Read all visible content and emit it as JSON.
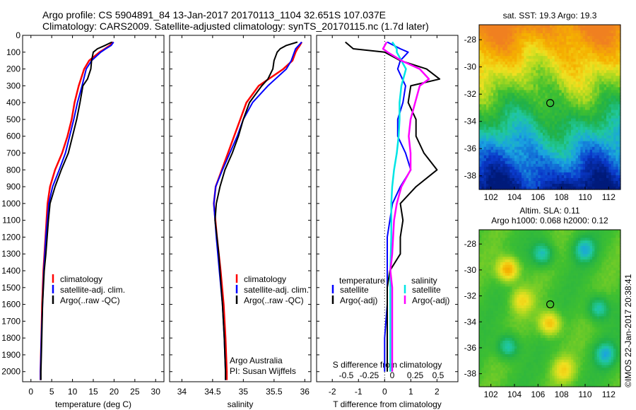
{
  "header": {
    "line1": "Argo profile: CS 5904891_84 13-Jan-2017 20170113_1104 32.651S 107.037E",
    "line2": "Climatology: CARS2009. Satellite-adjusted climatology: synTS_20170115.nc (1.7d later)"
  },
  "credit": "©IMOS 22-Jan-2017 20:38:41",
  "colors": {
    "climatology": "#ff0000",
    "satellite": "#0000ff",
    "argo": "#000000",
    "salinity_sat": "#00e5e5",
    "salinity_argo": "#ff00ff",
    "zero_line": "#000000"
  },
  "depth_axis": {
    "ticks": [
      0,
      100,
      200,
      300,
      400,
      500,
      600,
      700,
      800,
      900,
      1000,
      1100,
      1200,
      1300,
      1400,
      1500,
      1600,
      1700,
      1800,
      1900,
      2000
    ],
    "range": [
      0,
      2060
    ]
  },
  "chart_data": [
    {
      "type": "line",
      "panel": "temperature",
      "xlabel": "temperature (deg C)",
      "x_ticks": [
        "0",
        "5",
        "10",
        "15",
        "20",
        "25",
        "30"
      ],
      "x_tick_values": [
        0,
        5,
        10,
        15,
        20,
        25,
        30
      ],
      "xlim": [
        -2,
        32
      ],
      "legend": [
        "climatology",
        "satellite-adj. clim.",
        "Argo(..raw -QC)"
      ],
      "series": [
        {
          "name": "climatology",
          "color": "#ff0000",
          "depth": [
            40,
            60,
            80,
            100,
            150,
            200,
            300,
            400,
            500,
            600,
            700,
            800,
            900,
            1000,
            1200,
            1400,
            1600,
            1800,
            2000,
            2050
          ],
          "values": [
            19.8,
            19.0,
            17.8,
            16.5,
            14.0,
            12.8,
            11.5,
            10.5,
            9.8,
            8.8,
            7.5,
            5.8,
            4.6,
            4.0,
            3.5,
            3.0,
            2.7,
            2.5,
            2.3,
            2.3
          ]
        },
        {
          "name": "satellite-adj. clim.",
          "color": "#0000ff",
          "depth": [
            40,
            60,
            80,
            100,
            150,
            200,
            300,
            400,
            500,
            600,
            700,
            800,
            900,
            1000,
            1200,
            1400,
            1600,
            1800,
            2000,
            2050
          ],
          "values": [
            19.9,
            19.3,
            18.0,
            16.8,
            14.6,
            13.3,
            12.3,
            11.2,
            10.3,
            9.3,
            8.3,
            6.8,
            5.2,
            4.3,
            3.6,
            3.1,
            2.8,
            2.5,
            2.3,
            2.3
          ]
        },
        {
          "name": "Argo(..raw -QC)",
          "color": "#000000",
          "depth": [
            40,
            60,
            80,
            100,
            150,
            200,
            260,
            300,
            400,
            500,
            600,
            700,
            800,
            900,
            1000,
            1100,
            1200,
            1300,
            1400,
            1500,
            1600,
            1800,
            2000,
            2050
          ],
          "values": [
            19.5,
            17.8,
            16.0,
            15.0,
            14.6,
            14.4,
            13.6,
            12.5,
            11.8,
            11.0,
            10.0,
            9.0,
            7.3,
            5.8,
            4.6,
            4.2,
            3.9,
            3.6,
            3.2,
            3.0,
            2.8,
            2.6,
            2.4,
            2.4
          ]
        }
      ]
    },
    {
      "type": "line",
      "panel": "salinity",
      "xlabel": "salinity",
      "x_ticks": [
        "34",
        "34.5",
        "35",
        "35.5",
        "36"
      ],
      "x_tick_values": [
        34,
        34.5,
        35,
        35.5,
        36
      ],
      "xlim": [
        33.8,
        36.1
      ],
      "legend": [
        "climatology",
        "satellite-adj. clim.",
        "Argo(..raw -QC)"
      ],
      "annotation": [
        "Argo Australia",
        "PI: Susan Wijffels"
      ],
      "series": [
        {
          "name": "climatology",
          "color": "#ff0000",
          "depth": [
            40,
            60,
            80,
            100,
            150,
            200,
            300,
            400,
            500,
            600,
            700,
            800,
            900,
            1000,
            1200,
            1400,
            1600,
            1800,
            2000,
            2050
          ],
          "values": [
            35.95,
            35.92,
            35.88,
            35.85,
            35.8,
            35.65,
            35.25,
            35.05,
            34.95,
            34.85,
            34.75,
            34.65,
            34.55,
            34.52,
            34.57,
            34.63,
            34.68,
            34.71,
            34.73,
            34.73
          ]
        },
        {
          "name": "satellite-adj. clim.",
          "color": "#0000ff",
          "depth": [
            40,
            60,
            80,
            100,
            150,
            200,
            300,
            400,
            500,
            600,
            700,
            800,
            900,
            1000,
            1200,
            1400,
            1600,
            1800,
            2000,
            2050
          ],
          "values": [
            35.95,
            35.9,
            35.85,
            35.83,
            35.78,
            35.7,
            35.4,
            35.15,
            35.0,
            34.9,
            34.78,
            34.66,
            34.55,
            34.52,
            34.56,
            34.61,
            34.66,
            34.69,
            34.71,
            34.71
          ]
        },
        {
          "name": "Argo(..raw -QC)",
          "color": "#000000",
          "depth": [
            40,
            60,
            80,
            100,
            150,
            200,
            260,
            300,
            400,
            500,
            600,
            700,
            800,
            900,
            1000,
            1100,
            1200,
            1300,
            1400,
            1500,
            1600,
            1800,
            2000,
            2050
          ],
          "values": [
            35.88,
            35.7,
            35.6,
            35.55,
            35.5,
            35.48,
            35.4,
            35.3,
            35.1,
            35.0,
            34.92,
            34.82,
            34.7,
            34.62,
            34.56,
            34.54,
            34.57,
            34.6,
            34.62,
            34.64,
            34.66,
            34.69,
            34.71,
            34.71
          ]
        }
      ]
    },
    {
      "type": "line",
      "panel": "difference",
      "xlabel": "T difference from climatology",
      "xlabel_top": "S difference from climatology",
      "x_ticks": [
        "-2",
        "-1",
        "0",
        "1",
        "2"
      ],
      "x_tick_values": [
        -2,
        -1,
        0,
        1,
        2
      ],
      "x_ticks_s": [
        "-0.5",
        "-0.25",
        "0",
        "0.25",
        "0.5"
      ],
      "x_tick_values_s": [
        -0.5,
        -0.25,
        0,
        0.25,
        0.5
      ],
      "xlim": [
        -2.6,
        2.8
      ],
      "legend_titles": [
        "temperature",
        "salinity"
      ],
      "legend": [
        "satellite",
        "Argo(-adj)",
        "satellite",
        "Argo(-adj)"
      ],
      "series": [
        {
          "name": "satellite",
          "quantity": "temperature",
          "color": "#0000ff",
          "depth": [
            40,
            80,
            100,
            150,
            200,
            300,
            400,
            500,
            600,
            700,
            800,
            900,
            1000,
            1200,
            1400,
            1600,
            1800,
            2000
          ],
          "values": [
            0.1,
            0.6,
            0.9,
            0.6,
            0.5,
            0.8,
            0.7,
            0.5,
            0.5,
            0.8,
            1.0,
            0.6,
            0.3,
            0.1,
            0.1,
            0.1,
            0.0,
            0.0
          ]
        },
        {
          "name": "Argo(-adj)",
          "quantity": "temperature",
          "color": "#000000",
          "depth": [
            40,
            80,
            100,
            150,
            200,
            260,
            300,
            400,
            500,
            600,
            700,
            800,
            900,
            1000,
            1100,
            1200,
            1300,
            1400,
            1500,
            1600,
            1800,
            2000
          ],
          "values": [
            -1.5,
            -1.2,
            0.0,
            0.6,
            1.6,
            2.1,
            1.0,
            0.9,
            1.2,
            1.2,
            1.5,
            2.0,
            1.2,
            0.6,
            0.7,
            0.6,
            0.6,
            0.2,
            0.1,
            0.1,
            0.1,
            0.1
          ]
        },
        {
          "name": "satellite",
          "quantity": "salinity",
          "color": "#00e5e5",
          "depth": [
            40,
            80,
            100,
            150,
            200,
            300,
            400,
            500,
            600,
            700,
            800,
            900,
            1000,
            1200,
            1400,
            1600,
            1800,
            2000
          ],
          "values": [
            0.0,
            0.05,
            0.05,
            0.1,
            0.15,
            0.1,
            0.08,
            0.08,
            0.07,
            0.05,
            0.02,
            0.0,
            -0.01,
            -0.01,
            -0.02,
            -0.02,
            -0.02,
            -0.02
          ]
        },
        {
          "name": "Argo(-adj)",
          "quantity": "salinity",
          "color": "#ff00ff",
          "depth": [
            40,
            80,
            100,
            150,
            200,
            260,
            300,
            400,
            500,
            600,
            700,
            800,
            900,
            1000,
            1100,
            1200,
            1300,
            1400,
            1500,
            1600,
            1800,
            2000
          ],
          "values": [
            -0.06,
            -0.1,
            -0.05,
            0.1,
            0.3,
            0.4,
            0.3,
            0.25,
            0.2,
            0.18,
            0.2,
            0.2,
            0.1,
            0.05,
            0.02,
            0.01,
            0.0,
            -0.02,
            0.0,
            0.0,
            0.0,
            0.0
          ]
        }
      ]
    },
    {
      "type": "heatmap",
      "panel": "sst_map",
      "title": "sat. SST: 19.3  Argo: 19.3",
      "x_ticks": [
        "102",
        "104",
        "106",
        "108",
        "110",
        "112"
      ],
      "x_tick_values": [
        102,
        104,
        106,
        108,
        110,
        112
      ],
      "y_ticks": [
        "-28",
        "-30",
        "-32",
        "-34",
        "-36",
        "-38"
      ],
      "y_tick_values": [
        -28,
        -30,
        -32,
        -34,
        -36,
        -38
      ],
      "xlim": [
        101,
        113
      ],
      "ylim": [
        -39,
        -26.9
      ],
      "marker": {
        "lon": 107.037,
        "lat": -32.651
      }
    },
    {
      "type": "heatmap",
      "panel": "sla_map",
      "title": "Altim. SLA: 0.11",
      "title2": "Argo h1000: 0.068 h2000: 0.12",
      "x_ticks": [
        "102",
        "104",
        "106",
        "108",
        "110",
        "112"
      ],
      "x_tick_values": [
        102,
        104,
        106,
        108,
        110,
        112
      ],
      "y_ticks": [
        "-28",
        "-30",
        "-32",
        "-34",
        "-36",
        "-38"
      ],
      "y_tick_values": [
        -28,
        -30,
        -32,
        -34,
        -36,
        -38
      ],
      "xlim": [
        101,
        113
      ],
      "ylim": [
        -39,
        -26.9
      ],
      "marker": {
        "lon": 107.037,
        "lat": -32.651
      }
    }
  ]
}
